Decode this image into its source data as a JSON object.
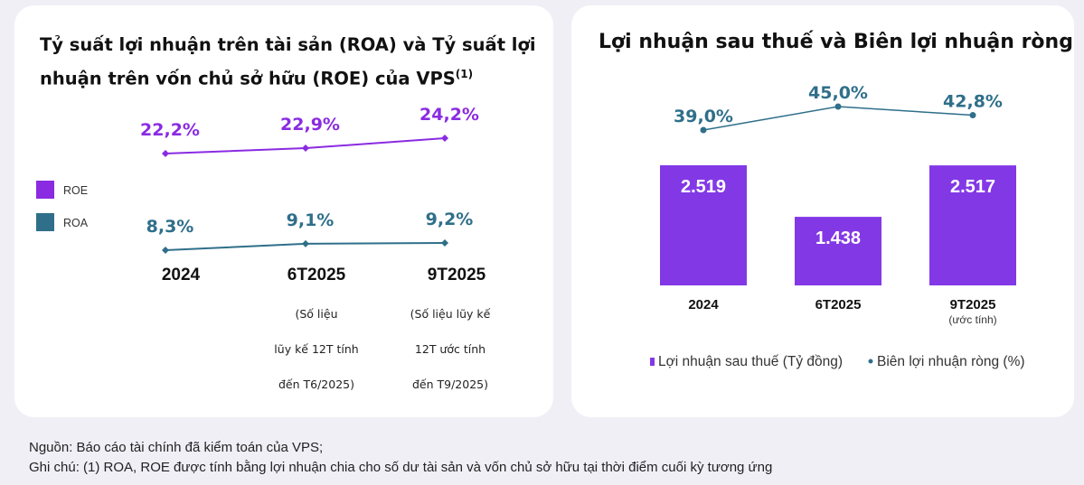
{
  "colors": {
    "roe": "#8a2be2",
    "roa": "#2f6f8a",
    "bar": "#8338e6",
    "margin_line": "#2f6f8a",
    "background": "#f1eff6"
  },
  "chart_data": [
    {
      "type": "line",
      "title": "Tỷ suất lợi nhuận trên tài sản (ROA) và Tỷ suất lợi nhuận trên vốn chủ sở hữu (ROE) của VPS",
      "title_sup": "(1)",
      "categories": [
        "2024",
        "6T2025",
        "9T2025"
      ],
      "category_notes": [
        "",
        "(Số liệu|lũy kế 12T tính|đến T6/2025)",
        "(Số liệu lũy kế|12T ước tính|đến T9/2025)"
      ],
      "series": [
        {
          "name": "ROE",
          "values": [
            22.2,
            22.9,
            24.2
          ],
          "labels": [
            "22,2%",
            "22,9%",
            "24,2%"
          ]
        },
        {
          "name": "ROA",
          "values": [
            8.3,
            9.1,
            9.2
          ],
          "labels": [
            "8,3%",
            "9,1%",
            "9,2%"
          ]
        }
      ],
      "legend_placement": "left",
      "grid": false
    },
    {
      "type": "bar+line",
      "title": "Lợi nhuận sau thuế và Biên lợi nhuận ròng",
      "categories": [
        "2024",
        "6T2025",
        "9T2025"
      ],
      "category_notes": [
        "",
        "",
        "(ước tính)"
      ],
      "series": [
        {
          "name": "Lợi nhuận sau thuế (Tỷ đồng)",
          "type": "bar",
          "values": [
            2519,
            1438,
            2517
          ],
          "labels": [
            "2.519",
            "1.438",
            "2.517"
          ]
        },
        {
          "name": "Biên lợi nhuận ròng (%)",
          "type": "line",
          "values": [
            39.0,
            45.0,
            42.8
          ],
          "labels": [
            "39,0%",
            "45,0%",
            "42,8%"
          ]
        }
      ],
      "legend_placement": "bottom",
      "grid": false
    }
  ],
  "footer": {
    "source": "Nguồn: Báo cáo tài chính đã kiểm toán của VPS;",
    "note": "Ghi chú: (1) ROA, ROE được tính bằng lợi nhuận chia cho số dư tài sản và vốn chủ sở hữu tại thời điểm cuối kỳ tương ứng"
  }
}
